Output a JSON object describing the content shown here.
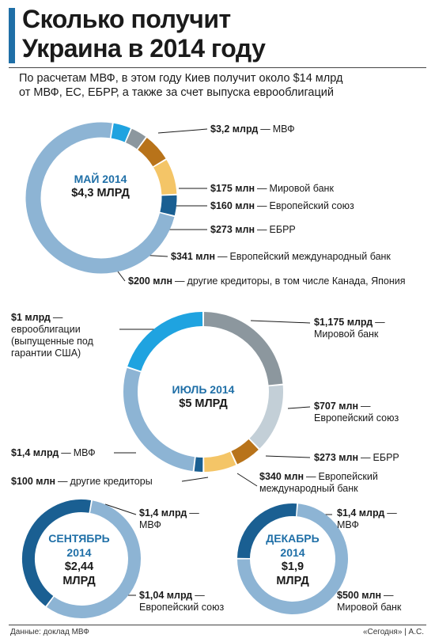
{
  "header": {
    "title_line1": "Сколько получит",
    "title_line2": "Украина в 2014 году",
    "subtitle_line1": "По расчетам МВФ, в этом году Киев получит около $14 млрд",
    "subtitle_line2": "от МВФ, ЕС, ЕБРР, а также за счет выпуска еврооблигаций"
  },
  "chart_data": [
    {
      "type": "pie",
      "title": "МАЙ 2014",
      "total": "$4,3 МЛРД",
      "unit": "млн $",
      "slices": [
        {
          "label": "МВФ",
          "amount": "$3,2 млрд",
          "value": 3200,
          "color": "#8db4d4"
        },
        {
          "label": "Мировой банк",
          "amount": "$175 млн",
          "value": 175,
          "color": "#1fa3e0"
        },
        {
          "label": "Европейский союз",
          "amount": "$160 млн",
          "value": 160,
          "color": "#8c979e"
        },
        {
          "label": "ЕБРР",
          "amount": "$273 млн",
          "value": 273,
          "color": "#b8731a"
        },
        {
          "label": "Европейский международный банк",
          "amount": "$341 млн",
          "value": 341,
          "color": "#f4c567"
        },
        {
          "label": "другие кредиторы, в том числе Канада, Япония",
          "amount": "$200 млн",
          "value": 200,
          "color": "#1a5f92"
        }
      ]
    },
    {
      "type": "pie",
      "title": "ИЮЛЬ 2014",
      "total": "$5 МЛРД",
      "unit": "млн $",
      "slices": [
        {
          "label": "Мировой банк",
          "amount": "$1,175 млрд",
          "value": 1175,
          "color": "#8c979e"
        },
        {
          "label": "Европейский союз",
          "amount": "$707 млн",
          "value": 707,
          "color": "#c3cfd7"
        },
        {
          "label": "ЕБРР",
          "amount": "$273 млн",
          "value": 273,
          "color": "#b8731a"
        },
        {
          "label": "Европейский международный банк",
          "amount": "$340 млн",
          "value": 340,
          "color": "#f4c567"
        },
        {
          "label": "другие кредиторы",
          "amount": "$100 млн",
          "value": 100,
          "color": "#1a5f92"
        },
        {
          "label": "МВФ",
          "amount": "$1,4 млрд",
          "value": 1400,
          "color": "#8db4d4"
        },
        {
          "label": "еврооблигации (выпущенные под гарантии США)",
          "amount": "$1 млрд",
          "value": 1000,
          "color": "#1fa3e0"
        }
      ]
    },
    {
      "type": "pie",
      "title": "СЕНТЯБРЬ 2014",
      "total": "$2,44 МЛРД",
      "unit": "млн $",
      "slices": [
        {
          "label": "МВФ",
          "amount": "$1,4 млрд",
          "value": 1400,
          "color": "#8db4d4"
        },
        {
          "label": "Европейский союз",
          "amount": "$1,04 млрд",
          "value": 1040,
          "color": "#1a5f92"
        }
      ]
    },
    {
      "type": "pie",
      "title": "ДЕКАБРЬ 2014",
      "total": "$1,9 МЛРД",
      "unit": "млн $",
      "slices": [
        {
          "label": "МВФ",
          "amount": "$1,4 млрд",
          "value": 1400,
          "color": "#8db4d4"
        },
        {
          "label": "Мировой банк",
          "amount": "$500 млн",
          "value": 500,
          "color": "#1a5f92"
        }
      ]
    }
  ],
  "labels": {
    "may_imf_amount": "$3,2 млрд",
    "may_imf_name": "МВФ",
    "may_wb_amount": "$175 млн",
    "may_wb_name": "Мировой банк",
    "may_eu_amount": "$160 млн",
    "may_eu_name": "Европейский союз",
    "may_ebrd_amount": "$273 млн",
    "may_ebrd_name": "ЕБРР",
    "may_eib_amount": "$341 млн",
    "may_eib_name": "Европейский международный банк",
    "may_other_amount": "$200 млн",
    "may_other_name": "другие кредиторы, в том числе Канада, Япония",
    "jul_bonds_amount": "$1 млрд",
    "jul_bonds_line1": "еврооблигации",
    "jul_bonds_line2": "(выпущенные под",
    "jul_bonds_line3": "гарантии США)",
    "jul_wb_amount": "$1,175 млрд",
    "jul_wb_name": "Мировой банк",
    "jul_eu_amount": "$707 млн",
    "jul_eu_name": "Европейский союз",
    "jul_ebrd_amount": "$273 млн",
    "jul_ebrd_name": "ЕБРР",
    "jul_eib_amount": "$340 млн",
    "jul_eib_line1": "Европейский",
    "jul_eib_line2": "международный банк",
    "jul_imf_amount": "$1,4 млрд",
    "jul_imf_name": "МВФ",
    "jul_other_amount": "$100 млн",
    "jul_other_name": "другие кредиторы",
    "sep_imf_amount": "$1,4 млрд",
    "sep_imf_name": "МВФ",
    "sep_eu_amount": "$1,04 млрд",
    "sep_eu_name": "Европейский союз",
    "dec_imf_amount": "$1,4 млрд",
    "dec_imf_name": "МВФ",
    "dec_wb_amount": "$500 млн",
    "dec_wb_name": "Мировой банк"
  },
  "centers": {
    "may_title": "МАЙ 2014",
    "may_total": "$4,3 МЛРД",
    "jul_title": "ИЮЛЬ 2014",
    "jul_total": "$5 МЛРД",
    "sep_title_1": "СЕНТЯБРЬ",
    "sep_title_2": "2014",
    "sep_total_1": "$2,44",
    "sep_total_2": "МЛРД",
    "dec_title_1": "ДЕКАБРЬ",
    "dec_title_2": "2014",
    "dec_total_1": "$1,9",
    "dec_total_2": "МЛРД"
  },
  "footer": {
    "source": "Данные: доклад МВФ",
    "credit": "«Сегодня» | А.С."
  }
}
